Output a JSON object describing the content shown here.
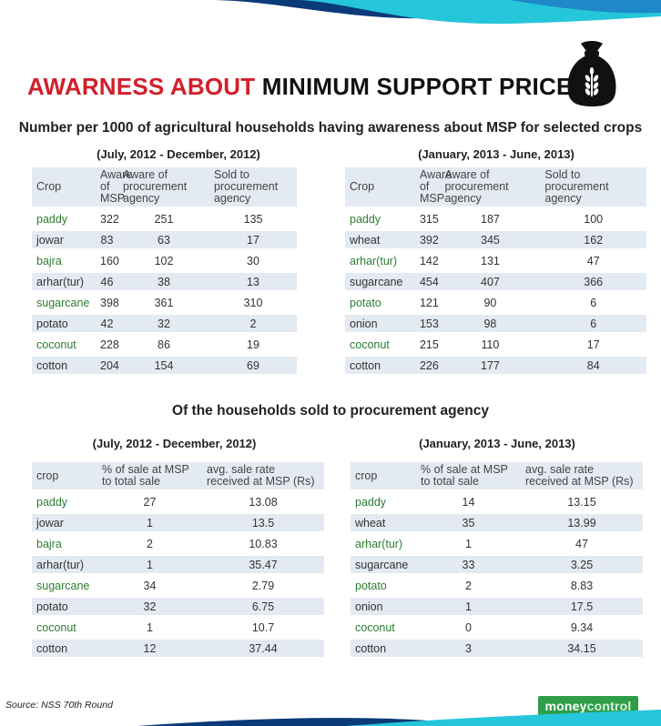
{
  "title": {
    "highlight": "AWARNESS ABOUT",
    "rest": "MINIMUM SUPPORT PRICE"
  },
  "icon": "wheat-sack-icon",
  "colors": {
    "red": "#d0202b",
    "green_text": "#2e7d32",
    "row_bg": "#e4eaf1",
    "brand_green": "#2e9e48",
    "wave_blue": "#0b3a78",
    "wave_teal": "#26c6da"
  },
  "section1": {
    "subtitle": "Number per 1000 of agricultural households having awareness about MSP for selected crops",
    "left": {
      "period": "(July, 2012 - December, 2012)",
      "headers": [
        "Crop",
        "Aware of MSP",
        "Aware of procurement agency",
        "Sold to procurement agency"
      ],
      "rows": [
        [
          "paddy",
          "322",
          "251",
          "135"
        ],
        [
          "jowar",
          "83",
          "63",
          "17"
        ],
        [
          "bajra",
          "160",
          "102",
          "30"
        ],
        [
          "arhar(tur)",
          "46",
          "38",
          "13"
        ],
        [
          "sugarcane",
          "398",
          "361",
          "310"
        ],
        [
          "potato",
          "42",
          "32",
          "2"
        ],
        [
          "coconut",
          "228",
          "86",
          "19"
        ],
        [
          "cotton",
          "204",
          "154",
          "69"
        ]
      ]
    },
    "right": {
      "period": "(January, 2013 - June, 2013)",
      "headers": [
        "Crop",
        "Aware of MSP",
        "Aware of procurement agency",
        "Sold to procurement agency"
      ],
      "rows": [
        [
          "paddy",
          "315",
          "187",
          "100"
        ],
        [
          "wheat",
          "392",
          "345",
          "162"
        ],
        [
          "arhar(tur)",
          "142",
          "131",
          "47"
        ],
        [
          "sugarcane",
          "454",
          "407",
          "366"
        ],
        [
          "potato",
          "121",
          "90",
          "6"
        ],
        [
          "onion",
          "153",
          "98",
          "6"
        ],
        [
          "coconut",
          "215",
          "110",
          "17"
        ],
        [
          "cotton",
          "226",
          "177",
          "84"
        ]
      ]
    }
  },
  "section2": {
    "subtitle": "Of the households sold to procurement agency",
    "left": {
      "period": "(July, 2012 - December, 2012)",
      "headers": [
        "crop",
        "% of sale at MSP to total sale",
        "avg. sale rate received at MSP (Rs)"
      ],
      "rows": [
        [
          "paddy",
          "27",
          "13.08"
        ],
        [
          "jowar",
          "1",
          "13.5"
        ],
        [
          "bajra",
          "2",
          "10.83"
        ],
        [
          "arhar(tur)",
          "1",
          "35.47"
        ],
        [
          "sugarcane",
          "34",
          "2.79"
        ],
        [
          "potato",
          "32",
          "6.75"
        ],
        [
          "coconut",
          "1",
          "10.7"
        ],
        [
          "cotton",
          "12",
          "37.44"
        ]
      ]
    },
    "right": {
      "period": "(January, 2013 - June, 2013)",
      "headers": [
        "crop",
        "% of sale at MSP to total sale",
        "avg. sale rate received at MSP (Rs)"
      ],
      "rows": [
        [
          "paddy",
          "14",
          "13.15"
        ],
        [
          "wheat",
          "35",
          "13.99"
        ],
        [
          "arhar(tur)",
          "1",
          "47"
        ],
        [
          "sugarcane",
          "33",
          "3.25"
        ],
        [
          "potato",
          "2",
          "8.83"
        ],
        [
          "onion",
          "1",
          "17.5"
        ],
        [
          "coconut",
          "0",
          "9.34"
        ],
        [
          "cotton",
          "3",
          "34.15"
        ]
      ]
    }
  },
  "source": "Source: NSS 70th Round",
  "logo": {
    "part1": "money",
    "part2": "control"
  }
}
